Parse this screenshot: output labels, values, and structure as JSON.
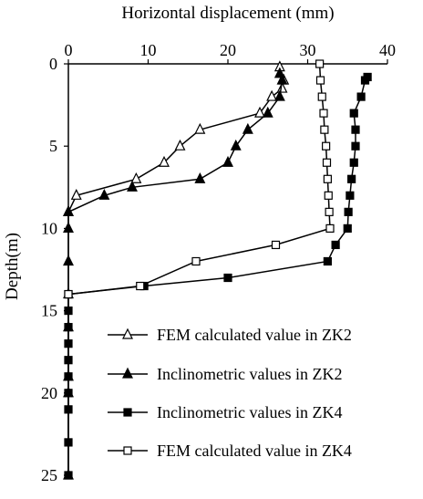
{
  "chart_data": {
    "type": "line",
    "title": "",
    "xlabel": "Horizontal displacement (mm)",
    "ylabel": "Depth(m)",
    "x_axis_position": "top",
    "y_axis_inverted": true,
    "xlim": [
      0,
      40
    ],
    "ylim": [
      0,
      25
    ],
    "x_ticks": [
      "0",
      "10",
      "20",
      "30",
      "40"
    ],
    "y_ticks": [
      "0",
      "5",
      "10",
      "15",
      "20",
      "25"
    ],
    "grid": false,
    "legend_position": "bottom-right",
    "series": [
      {
        "name": "FEM calculated value in ZK2",
        "marker": "open-triangle",
        "color": "#000000",
        "points": [
          {
            "x": 26.5,
            "y": 0.2
          },
          {
            "x": 27.0,
            "y": 1.0
          },
          {
            "x": 26.8,
            "y": 1.5
          },
          {
            "x": 25.5,
            "y": 2.0
          },
          {
            "x": 24.0,
            "y": 3.0
          },
          {
            "x": 16.5,
            "y": 4.0
          },
          {
            "x": 14.0,
            "y": 5.0
          },
          {
            "x": 12.0,
            "y": 6.0
          },
          {
            "x": 8.5,
            "y": 7.0
          },
          {
            "x": 1.0,
            "y": 8.0
          },
          {
            "x": 0.0,
            "y": 9.0
          }
        ]
      },
      {
        "name": "Inclinometric values in ZK2",
        "marker": "filled-triangle",
        "color": "#000000",
        "points": [
          {
            "x": 26.5,
            "y": 0.6
          },
          {
            "x": 26.8,
            "y": 1.0
          },
          {
            "x": 26.5,
            "y": 2.0
          },
          {
            "x": 25.0,
            "y": 3.0
          },
          {
            "x": 22.5,
            "y": 4.0
          },
          {
            "x": 21.0,
            "y": 5.0
          },
          {
            "x": 20.0,
            "y": 6.0
          },
          {
            "x": 16.5,
            "y": 7.0
          },
          {
            "x": 8.0,
            "y": 7.5
          },
          {
            "x": 4.5,
            "y": 8.0
          },
          {
            "x": 0.0,
            "y": 9.0
          },
          {
            "x": 0.0,
            "y": 10.0
          },
          {
            "x": 0.0,
            "y": 12.0
          },
          {
            "x": 0.0,
            "y": 14.0
          },
          {
            "x": 0.0,
            "y": 16.0
          },
          {
            "x": 0.0,
            "y": 19.0
          },
          {
            "x": 0.0,
            "y": 20.0
          },
          {
            "x": 0.0,
            "y": 25.0
          }
        ]
      },
      {
        "name": "Inclinometric values in ZK4",
        "marker": "filled-square",
        "color": "#000000",
        "points": [
          {
            "x": 37.5,
            "y": 0.8
          },
          {
            "x": 37.2,
            "y": 1.0
          },
          {
            "x": 36.7,
            "y": 2.0
          },
          {
            "x": 35.8,
            "y": 3.0
          },
          {
            "x": 36.0,
            "y": 4.0
          },
          {
            "x": 36.0,
            "y": 5.0
          },
          {
            "x": 35.8,
            "y": 6.0
          },
          {
            "x": 35.5,
            "y": 7.0
          },
          {
            "x": 35.3,
            "y": 8.0
          },
          {
            "x": 35.1,
            "y": 9.0
          },
          {
            "x": 35.0,
            "y": 10.0
          },
          {
            "x": 33.5,
            "y": 11.0
          },
          {
            "x": 32.5,
            "y": 12.0
          },
          {
            "x": 20.0,
            "y": 13.0
          },
          {
            "x": 9.5,
            "y": 13.5
          },
          {
            "x": 0.0,
            "y": 14.0
          },
          {
            "x": 0.0,
            "y": 15.0
          },
          {
            "x": 0.0,
            "y": 16.0
          },
          {
            "x": 0.0,
            "y": 17.0
          },
          {
            "x": 0.0,
            "y": 18.0
          },
          {
            "x": 0.0,
            "y": 19.0
          },
          {
            "x": 0.0,
            "y": 20.0
          },
          {
            "x": 0.0,
            "y": 21.0
          },
          {
            "x": 0.0,
            "y": 23.0
          },
          {
            "x": 0.0,
            "y": 25.0
          }
        ]
      },
      {
        "name": "FEM calculated value in ZK4",
        "marker": "open-square",
        "color": "#000000",
        "points": [
          {
            "x": 31.5,
            "y": 0.0
          },
          {
            "x": 31.6,
            "y": 1.0
          },
          {
            "x": 31.8,
            "y": 2.0
          },
          {
            "x": 32.0,
            "y": 3.0
          },
          {
            "x": 32.1,
            "y": 4.0
          },
          {
            "x": 32.3,
            "y": 5.0
          },
          {
            "x": 32.4,
            "y": 6.0
          },
          {
            "x": 32.5,
            "y": 7.0
          },
          {
            "x": 32.6,
            "y": 8.0
          },
          {
            "x": 32.7,
            "y": 9.0
          },
          {
            "x": 32.8,
            "y": 10.0
          },
          {
            "x": 26.0,
            "y": 11.0
          },
          {
            "x": 16.0,
            "y": 12.0
          },
          {
            "x": 9.0,
            "y": 13.5
          },
          {
            "x": 0.0,
            "y": 14.0
          }
        ]
      }
    ]
  }
}
